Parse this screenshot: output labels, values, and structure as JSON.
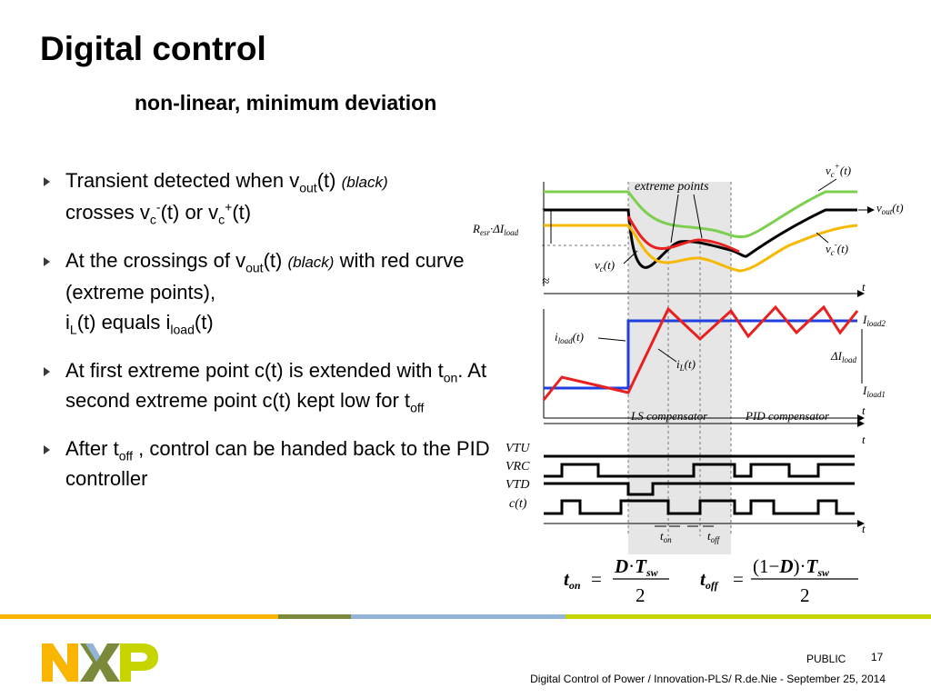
{
  "slide": {
    "title": "Digital control",
    "subtitle": "non-linear, minimum deviation"
  },
  "bullets": {
    "b1": {
      "t1": "Transient detected when v",
      "s1": "out",
      "t2": "(t) ",
      "i1": "(black)",
      "t3": "crosses v",
      "s2": "c",
      "p1": "-",
      "t4": "(t) or v",
      "s3": "c",
      "p2": "+",
      "t5": "(t)"
    },
    "b2": {
      "t1": "At the crossings of v",
      "s1": "out",
      "t2": "(t) ",
      "i1": "(black)",
      "t3": " with red curve (extreme points),",
      "t4": "i",
      "s2": "L",
      "t5": "(t) equals i",
      "s3": "load",
      "t6": "(t)"
    },
    "b3": {
      "t1": "At first extreme point c(t) is extended with t",
      "s1": "on",
      "t2": ". At second extreme point c(t) kept low for t",
      "s2": "off"
    },
    "b4": {
      "t1": "After t",
      "s1": "off",
      "t2": " , control can be handed back to the PID controller"
    }
  },
  "diagram": {
    "extreme_points": "extreme points",
    "vc_plus": "v",
    "vc_plus_sub": "c",
    "vc_plus_sup": "+",
    "vc_plus_t": "(t)",
    "vout": "v",
    "vout_sub": "out",
    "vout_t": "(t)",
    "resr": "R",
    "resr_sub": "esr",
    "resr_mid": "·ΔI",
    "resr_sub2": "load",
    "vc": "v",
    "vc_sub": "c",
    "vc_t": "(t)",
    "vc_minus": "v",
    "vc_minus_sub": "c",
    "vc_minus_sup": "-",
    "vc_minus_t": "(t)",
    "approx": "≈",
    "t": "t",
    "iload_label": "i",
    "iload_sub": "load",
    "iload_t": "(t)",
    "il_label": "i",
    "il_sub": "L",
    "il_t": "(t)",
    "iload2": "I",
    "iload2_sub": "load2",
    "delta": "ΔI",
    "delta_sub": "load",
    "iload1": "I",
    "iload1_sub": "load1",
    "ls_comp": "LS compensator",
    "pid_comp": "PID compensator",
    "vtu": "VTU",
    "vrc": "VRC",
    "vtd": "VTD",
    "ct": "c(t)",
    "ton": "t",
    "ton_sub": "on",
    "toff": "t",
    "toff_sub": "off",
    "colors": {
      "green": "#7dcf50",
      "red": "#e82020",
      "yellow": "#f6b800",
      "blue": "#1f3fe0",
      "shade": "#e6e6e6"
    }
  },
  "formulas": {
    "ton_lhs": "t",
    "ton_lhs_sub": "on",
    "eq": "=",
    "ton_num": "D",
    "dot": "·",
    "tsw": "T",
    "tsw_sub": "sw",
    "den": "2",
    "toff_lhs": "t",
    "toff_lhs_sub": "off",
    "toff_num_open": "(1",
    "minus": "−",
    "toff_num_d": "D",
    "toff_num_close": ")"
  },
  "footer": {
    "classification": "PUBLIC",
    "page": "17",
    "text": "Digital Control of Power / Innovation-PLS/ R.de.Nie -  September 25, 2014"
  },
  "brand": {
    "stripe_colors": [
      "#f9b500",
      "#7b8a3a",
      "#92b4d8",
      "#c8d400"
    ]
  }
}
